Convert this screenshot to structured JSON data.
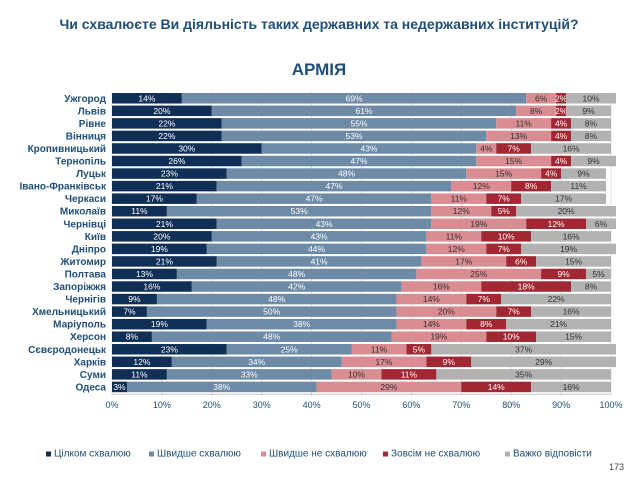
{
  "page": {
    "title": "Чи схвалюєте Ви діяльність таких державних та недержавних інституцій?",
    "page_number": "173"
  },
  "colors": {
    "title": "#1f4e79",
    "series": [
      "#0f2f57",
      "#6d8aa6",
      "#d98c91",
      "#a12732",
      "#b2b2b2"
    ]
  },
  "chart_data": {
    "type": "bar",
    "orientation": "horizontal",
    "stacked": true,
    "title": "АРМІЯ",
    "xlabel": "",
    "ylabel": "",
    "xlim": [
      0,
      100
    ],
    "x_ticks": [
      "0%",
      "10%",
      "20%",
      "30%",
      "40%",
      "50%",
      "60%",
      "70%",
      "80%",
      "90%",
      "100%"
    ],
    "grid": true,
    "legend_position": "bottom",
    "categories": [
      "Ужгород",
      "Львів",
      "Рівне",
      "Вінниця",
      "Кропивницький",
      "Тернопіль",
      "Луцьк",
      "Івано-Франківськ",
      "Черкаси",
      "Миколаїв",
      "Чернівці",
      "Київ",
      "Дніпро",
      "Житомир",
      "Полтава",
      "Запоріжжя",
      "Чернігів",
      "Хмельницький",
      "Маріуполь",
      "Херсон",
      "Сєвєродонецьк",
      "Харків",
      "Суми",
      "Одеса"
    ],
    "series": [
      {
        "name": "Цілком схвалюю",
        "values": [
          14,
          20,
          22,
          22,
          30,
          26,
          23,
          21,
          17,
          11,
          21,
          20,
          19,
          21,
          13,
          16,
          9,
          7,
          19,
          8,
          23,
          12,
          11,
          3
        ],
        "labels": [
          "14%",
          "20%",
          "22%",
          "22%",
          "30%",
          "26%",
          "23%",
          "21%",
          "17%",
          "11%",
          "21%",
          "20%",
          "19%",
          "21%",
          "13%",
          "16%",
          "9%",
          "7%",
          "19%",
          "8%",
          "23%",
          "12%",
          "11%",
          "3%"
        ]
      },
      {
        "name": "Швидше схвалюю",
        "values": [
          69,
          61,
          55,
          53,
          43,
          47,
          48,
          47,
          47,
          53,
          43,
          43,
          44,
          41,
          48,
          42,
          48,
          50,
          38,
          48,
          25,
          34,
          33,
          38
        ],
        "labels": [
          "69%",
          "61%",
          "55%",
          "53%",
          "43%",
          "47%",
          "48%",
          "47%",
          "47%",
          "53%",
          "43%",
          "43%",
          "44%",
          "41%",
          "48%",
          "42%",
          "48%",
          "50%",
          "38%",
          "48%",
          "25%",
          "34%",
          "33%",
          "38%"
        ]
      },
      {
        "name": "Швидше не схвалюю",
        "values": [
          6,
          8,
          11,
          13,
          4,
          15,
          15,
          12,
          11,
          12,
          19,
          11,
          12,
          17,
          25,
          16,
          14,
          20,
          14,
          19,
          11,
          17,
          10,
          29
        ],
        "labels": [
          "6%",
          "8%",
          "11%",
          "13%",
          "4%",
          "15%",
          "15%",
          "12%",
          "11%",
          "12%",
          "19%",
          "11%",
          "12%",
          "17%",
          "25%",
          "16%",
          "14%",
          "20%",
          "14%",
          "19%",
          "11%",
          "17%",
          "10%",
          "29%"
        ]
      },
      {
        "name": "Зовсім не схвалюю",
        "values": [
          2,
          2,
          4,
          4,
          7,
          4,
          4,
          8,
          7,
          5,
          12,
          10,
          7,
          6,
          9,
          18,
          7,
          7,
          8,
          10,
          5,
          9,
          11,
          14
        ],
        "labels": [
          "2%",
          "2%",
          "4%",
          "4%",
          "7%",
          "4%",
          "4%",
          "8%",
          "7%",
          "5%",
          "12%",
          "10%",
          "7%",
          "6%",
          "9%",
          "18%",
          "7%",
          "7%",
          "8%",
          "10%",
          "5%",
          "9%",
          "11%",
          "14%"
        ]
      },
      {
        "name": "Важко відповісти",
        "values": [
          10,
          9,
          8,
          8,
          16,
          9,
          9,
          11,
          17,
          20,
          6,
          16,
          19,
          15,
          5,
          8,
          22,
          16,
          21,
          15,
          37,
          29,
          35,
          16
        ],
        "labels": [
          "10%",
          "9%",
          "8%",
          "8%",
          "16%",
          "9%",
          "9%",
          "11%",
          "17%",
          "20%",
          "6%",
          "16%",
          "19%",
          "15%",
          "5%",
          "8%",
          "22%",
          "16%",
          "21%",
          "15%",
          "37%",
          "29%",
          "35%",
          "16%"
        ]
      }
    ]
  }
}
